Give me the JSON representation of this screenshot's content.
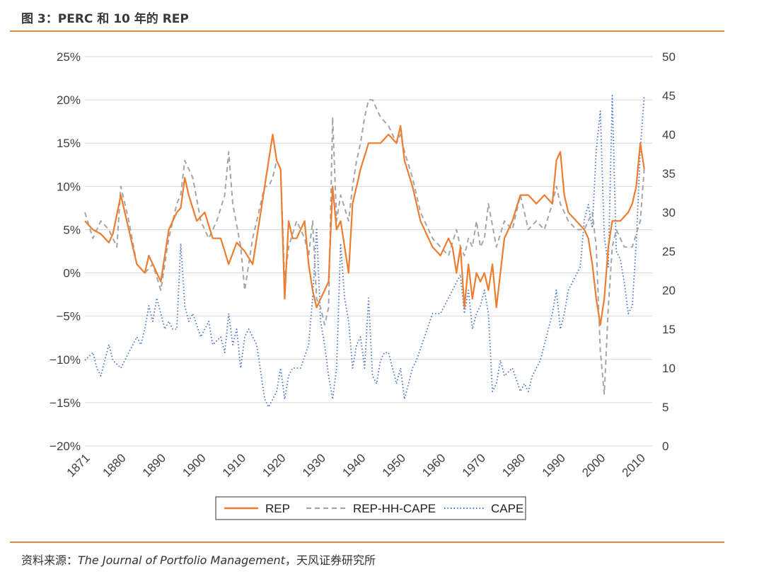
{
  "figure": {
    "title": "图 3：PERC 和 10 年的 REP",
    "source_label": "资料来源：",
    "source_journal": "The Journal of Portfolio Management",
    "source_rest": "，天风证券研究所"
  },
  "chart_data": {
    "type": "line",
    "title": "",
    "x_ticks": [
      "1871",
      "1880",
      "1890",
      "1900",
      "1910",
      "1920",
      "1930",
      "1940",
      "1950",
      "1960",
      "1970",
      "1980",
      "1990",
      "2000",
      "2010"
    ],
    "x_range": [
      1871,
      2013
    ],
    "y_left": {
      "min": -20,
      "max": 25,
      "ticks": [
        "25%",
        "20%",
        "15%",
        "10%",
        "5%",
        "0%",
        "−5%",
        "−10%",
        "−15%",
        "−20%"
      ]
    },
    "y_right": {
      "min": 0,
      "max": 50,
      "ticks": [
        "50",
        "45",
        "40",
        "35",
        "30",
        "25",
        "20",
        "15",
        "10",
        "5",
        "0"
      ]
    },
    "colors": {
      "REP": "#ed7d31",
      "REP-HH-CAPE": "#a5a5a5",
      "CAPE": "#4472c4"
    },
    "legend": [
      "REP",
      "REP-HH-CAPE",
      "CAPE"
    ],
    "series": [
      {
        "name": "REP",
        "axis": "left",
        "x": [
          1871,
          1873,
          1875,
          1877,
          1878,
          1880,
          1882,
          1884,
          1886,
          1887,
          1888,
          1890,
          1892,
          1894,
          1895,
          1896,
          1897,
          1899,
          1901,
          1903,
          1905,
          1907,
          1909,
          1911,
          1913,
          1916,
          1917,
          1918,
          1919,
          1920,
          1921,
          1922,
          1923,
          1924,
          1926,
          1927,
          1928,
          1929,
          1930,
          1931,
          1932,
          1933,
          1934,
          1935,
          1937,
          1938,
          1940,
          1942,
          1943,
          1945,
          1947,
          1949,
          1950,
          1951,
          1953,
          1955,
          1958,
          1960,
          1962,
          1963,
          1964,
          1965,
          1966,
          1967,
          1968,
          1969,
          1970,
          1971,
          1972,
          1973,
          1974,
          1976,
          1978,
          1980,
          1982,
          1984,
          1986,
          1988,
          1989,
          1990,
          1991,
          1992,
          1994,
          1996,
          1997,
          1998,
          1999,
          2000,
          2001,
          2002,
          2003,
          2004,
          2005,
          2007,
          2008,
          2009,
          2010,
          2011
        ],
        "y": [
          6,
          5,
          4.5,
          3.5,
          4.5,
          9,
          5,
          1,
          0,
          2,
          1,
          -1,
          5,
          7,
          7.5,
          11,
          9,
          6,
          7,
          4,
          4,
          1,
          3.5,
          2.5,
          1,
          10,
          13,
          16,
          13,
          12,
          -3,
          6,
          4,
          4,
          6,
          1,
          -2,
          -4,
          -3,
          -2,
          -1,
          10,
          5,
          6,
          0,
          8,
          12,
          15,
          15,
          15,
          16,
          15,
          17,
          13,
          10,
          6,
          3,
          2,
          4,
          3,
          0,
          3,
          -4,
          1,
          -3,
          0,
          -1,
          0,
          -2,
          1,
          -4,
          4,
          6,
          9,
          9,
          8,
          9,
          8,
          13,
          14,
          9,
          7,
          6,
          5,
          4,
          1,
          -3,
          -6,
          -3,
          3,
          6,
          6,
          6,
          7,
          8,
          10,
          15,
          12
        ]
      },
      {
        "name": "REP-HH-CAPE",
        "axis": "left",
        "x": [
          1871,
          1873,
          1875,
          1877,
          1879,
          1880,
          1882,
          1884,
          1886,
          1888,
          1890,
          1892,
          1894,
          1895,
          1896,
          1898,
          1900,
          1902,
          1904,
          1906,
          1907,
          1908,
          1910,
          1911,
          1913,
          1915,
          1916,
          1917,
          1918,
          1919,
          1920,
          1921,
          1922,
          1924,
          1926,
          1927,
          1928,
          1929,
          1930,
          1931,
          1932,
          1933,
          1934,
          1935,
          1937,
          1938,
          1939,
          1940,
          1941,
          1942,
          1943,
          1945,
          1947,
          1949,
          1950,
          1951,
          1953,
          1955,
          1958,
          1960,
          1962,
          1964,
          1965,
          1966,
          1967,
          1968,
          1969,
          1970,
          1971,
          1972,
          1974,
          1976,
          1978,
          1980,
          1982,
          1984,
          1986,
          1988,
          1989,
          1990,
          1991,
          1992,
          1994,
          1996,
          1998,
          1999,
          2000,
          2001,
          2002,
          2003,
          2004,
          2006,
          2008,
          2010,
          2011
        ],
        "y": [
          7,
          4,
          6,
          5,
          3,
          10,
          6,
          1,
          0,
          1,
          -2,
          4,
          8,
          9,
          13,
          11,
          6,
          4,
          6,
          9,
          14,
          8,
          3,
          -2,
          4,
          8,
          10,
          10,
          11,
          13,
          12,
          -1,
          3,
          6,
          4,
          2,
          6,
          -3,
          -4,
          -6,
          -4,
          18,
          6,
          9,
          6,
          10,
          13,
          15,
          18,
          20,
          20,
          18,
          17,
          15,
          16,
          14,
          11,
          7,
          4,
          3,
          2,
          5,
          3,
          2,
          4,
          3,
          6,
          3,
          4,
          8,
          3,
          6,
          5,
          9,
          5,
          6,
          5,
          8,
          10,
          8,
          7,
          6,
          5,
          5,
          7,
          3,
          -9,
          -14,
          -4,
          3,
          5,
          3,
          3,
          6,
          12
        ]
      },
      {
        "name": "CAPE",
        "axis": "right",
        "x": [
          1871,
          1873,
          1874,
          1875,
          1877,
          1878,
          1880,
          1882,
          1884,
          1885,
          1886,
          1887,
          1888,
          1889,
          1890,
          1891,
          1892,
          1893,
          1894,
          1895,
          1896,
          1897,
          1898,
          1900,
          1902,
          1903,
          1905,
          1906,
          1907,
          1908,
          1909,
          1910,
          1911,
          1912,
          1914,
          1916,
          1917,
          1918,
          1919,
          1920,
          1921,
          1922,
          1923,
          1925,
          1927,
          1928,
          1929,
          1930,
          1931,
          1932,
          1933,
          1934,
          1935,
          1936,
          1937,
          1938,
          1939,
          1940,
          1941,
          1942,
          1943,
          1944,
          1945,
          1946,
          1947,
          1949,
          1950,
          1951,
          1953,
          1954,
          1956,
          1958,
          1960,
          1961,
          1962,
          1963,
          1964,
          1965,
          1966,
          1967,
          1968,
          1969,
          1970,
          1971,
          1972,
          1973,
          1974,
          1975,
          1976,
          1978,
          1980,
          1981,
          1982,
          1983,
          1984,
          1985,
          1986,
          1987,
          1988,
          1989,
          1990,
          1991,
          1992,
          1993,
          1995,
          1996,
          1997,
          1998,
          1999,
          2000,
          2001,
          2002,
          2003,
          2004,
          2005,
          2006,
          2007,
          2008,
          2009,
          2010,
          2011
        ],
        "y": [
          11,
          12,
          10,
          9,
          13,
          11,
          10,
          12,
          14,
          13,
          15,
          18,
          16,
          19,
          17,
          15,
          16,
          15,
          15,
          26,
          18,
          16,
          17,
          14,
          16,
          13,
          14,
          12,
          17,
          13,
          15,
          10,
          14,
          15,
          13,
          6,
          5,
          6,
          7,
          10,
          6,
          9,
          10,
          10,
          13,
          19,
          28,
          16,
          13,
          9,
          6,
          10,
          26,
          19,
          16,
          10,
          13,
          14,
          10,
          19,
          9,
          8,
          11,
          12,
          12,
          8,
          10,
          6,
          10,
          11,
          14,
          17,
          17,
          18,
          19,
          20,
          21,
          22,
          17,
          20,
          15,
          17,
          18,
          20,
          17,
          7,
          8,
          11,
          9,
          10,
          7,
          8,
          7,
          9,
          10,
          11,
          13,
          15,
          17,
          20,
          15,
          17,
          20,
          21,
          23,
          29,
          31,
          28,
          38,
          43,
          27,
          23,
          45,
          25,
          24,
          21,
          17,
          18,
          26,
          38,
          45
        ]
      }
    ]
  }
}
